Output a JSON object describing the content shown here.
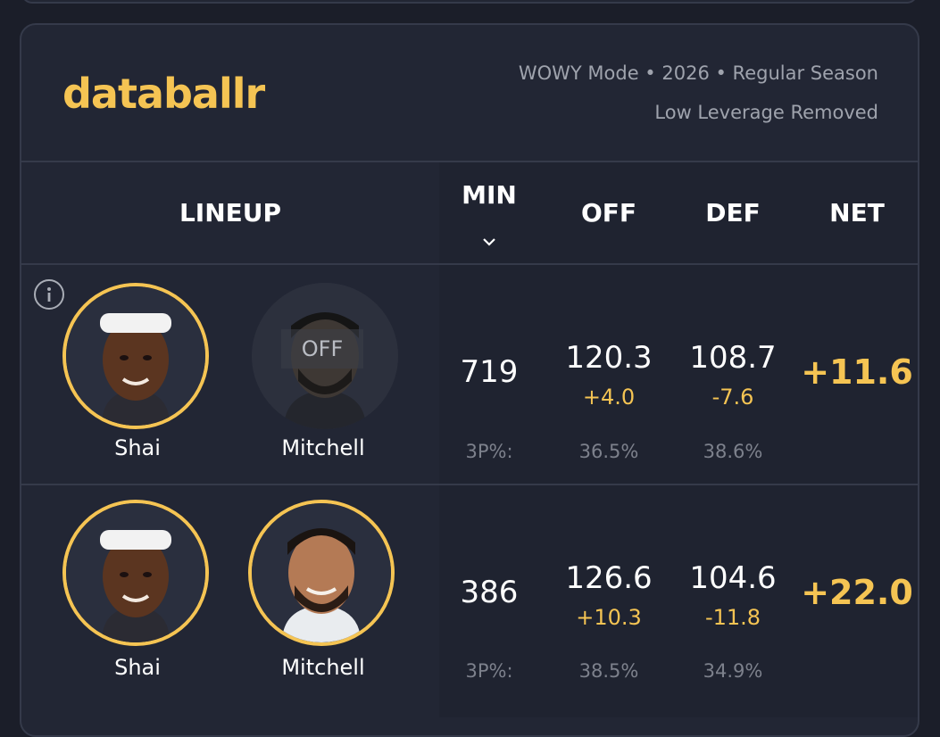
{
  "brand": "databallr",
  "meta": {
    "line1": "WOWY Mode • 2026 • Regular Season",
    "line2": "Low Leverage Removed"
  },
  "columns": {
    "lineup": "LINEUP",
    "min": "MIN",
    "off": "OFF",
    "def": "DEF",
    "net": "NET"
  },
  "colors": {
    "accent": "#f5c453",
    "background": "#1b1e29",
    "card": "#222634"
  },
  "rows": [
    {
      "players": [
        {
          "name": "Shai",
          "status": "on"
        },
        {
          "name": "Mitchell",
          "status": "off",
          "off_label": "OFF"
        }
      ],
      "min": "719",
      "off": "120.3",
      "off_delta": "+4.0",
      "def": "108.7",
      "def_delta": "-7.6",
      "net": "+11.6",
      "threep_label": "3P%:",
      "off_3p": "36.5%",
      "def_3p": "38.6%"
    },
    {
      "players": [
        {
          "name": "Shai",
          "status": "on"
        },
        {
          "name": "Mitchell",
          "status": "on"
        }
      ],
      "min": "386",
      "off": "126.6",
      "off_delta": "+10.3",
      "def": "104.6",
      "def_delta": "-11.8",
      "net": "+22.0",
      "threep_label": "3P%:",
      "off_3p": "38.5%",
      "def_3p": "34.9%"
    }
  ]
}
